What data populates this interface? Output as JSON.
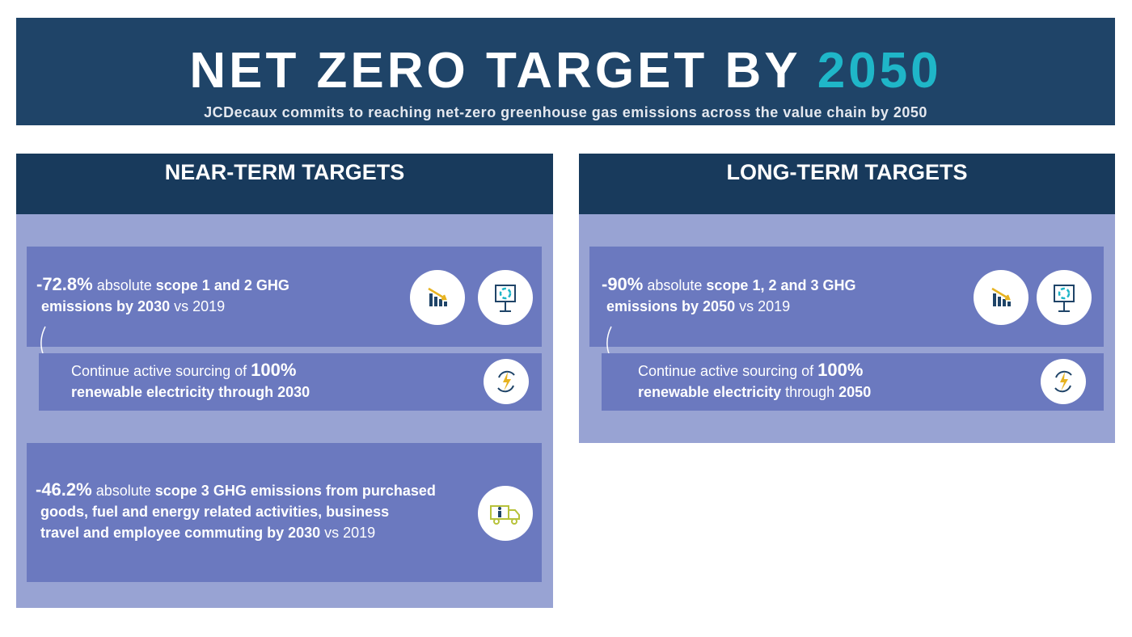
{
  "header": {
    "title_prefix": "NET ZERO TARGET BY ",
    "title_year": "2050",
    "subtitle": "JCDecaux commits to reaching net-zero greenhouse gas emissions across the value chain by 2050"
  },
  "near_term": {
    "title": "NEAR-TERM TARGETS",
    "year": "2030",
    "target1": {
      "value": "-72.8%",
      "t1": " absolute ",
      "t2": "scope 1 and 2 GHG",
      "t3": "emissions by 2030",
      "t4": " vs 2019"
    },
    "target2": {
      "t1": "Continue active sourcing of ",
      "t2": "100%",
      "t3": "renewable electricity through 2030"
    },
    "target3": {
      "value": "-46.2%",
      "t1": " absolute ",
      "t2": "scope 3 GHG emissions from purchased",
      "t3": "goods, fuel and energy related activities, business",
      "t4": "travel and employee commuting by 2030",
      "t5": " vs 2019"
    }
  },
  "long_term": {
    "title": "LONG-TERM TARGETS",
    "year": "2050",
    "target1": {
      "value": "-90%",
      "t1": " absolute ",
      "t2": "scope 1, 2 and 3 GHG",
      "t3": "emissions by 2050",
      "t4": " vs 2019"
    },
    "target2": {
      "t1": "Continue active sourcing of ",
      "t2": "100%",
      "t3": "renewable electricity",
      "t4": " through ",
      "t5": "2050"
    }
  },
  "colors": {
    "banner": "#1f4468",
    "accent": "#1fb6c8",
    "column_header": "#183a5c",
    "column_body": "#98a3d3",
    "card": "#6b79bf"
  },
  "icons": [
    "bar-chart-decline-icon",
    "presentation-board-icon",
    "renewable-energy-icon",
    "delivery-truck-icon"
  ]
}
